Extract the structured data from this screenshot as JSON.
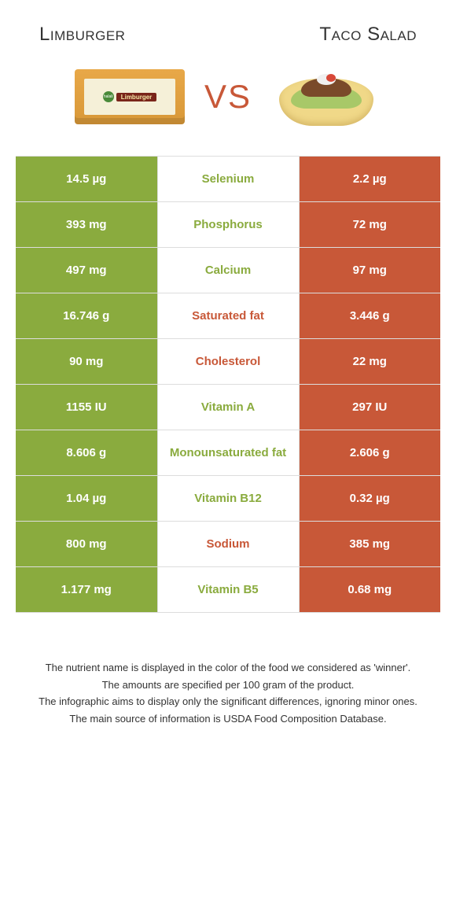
{
  "header": {
    "left_title": "Limburger",
    "right_title": "Taco Salad",
    "vs": "VS"
  },
  "colors": {
    "limburger": "#8aab3e",
    "taco_salad": "#c85838",
    "border": "#dddddd",
    "value_text": "#ffffff",
    "background": "#ffffff"
  },
  "cheese": {
    "brand_circle": "halali",
    "brand_name": "Limburger"
  },
  "table": {
    "rows": [
      {
        "left": "14.5 µg",
        "label": "Selenium",
        "right": "2.2 µg",
        "winner": "left"
      },
      {
        "left": "393 mg",
        "label": "Phosphorus",
        "right": "72 mg",
        "winner": "left"
      },
      {
        "left": "497 mg",
        "label": "Calcium",
        "right": "97 mg",
        "winner": "left"
      },
      {
        "left": "16.746 g",
        "label": "Saturated fat",
        "right": "3.446 g",
        "winner": "right"
      },
      {
        "left": "90 mg",
        "label": "Cholesterol",
        "right": "22 mg",
        "winner": "right"
      },
      {
        "left": "1155 IU",
        "label": "Vitamin A",
        "right": "297 IU",
        "winner": "left"
      },
      {
        "left": "8.606 g",
        "label": "Monounsaturated fat",
        "right": "2.606 g",
        "winner": "left"
      },
      {
        "left": "1.04 µg",
        "label": "Vitamin B12",
        "right": "0.32 µg",
        "winner": "left"
      },
      {
        "left": "800 mg",
        "label": "Sodium",
        "right": "385 mg",
        "winner": "right"
      },
      {
        "left": "1.177 mg",
        "label": "Vitamin B5",
        "right": "0.68 mg",
        "winner": "left"
      }
    ]
  },
  "footer": {
    "line1": "The nutrient name is displayed in the color of the food we considered as 'winner'.",
    "line2": "The amounts are specified per 100 gram of the product.",
    "line3": "The infographic aims to display only the significant differences, ignoring minor ones.",
    "line4": "The main source of information is USDA Food Composition Database."
  }
}
